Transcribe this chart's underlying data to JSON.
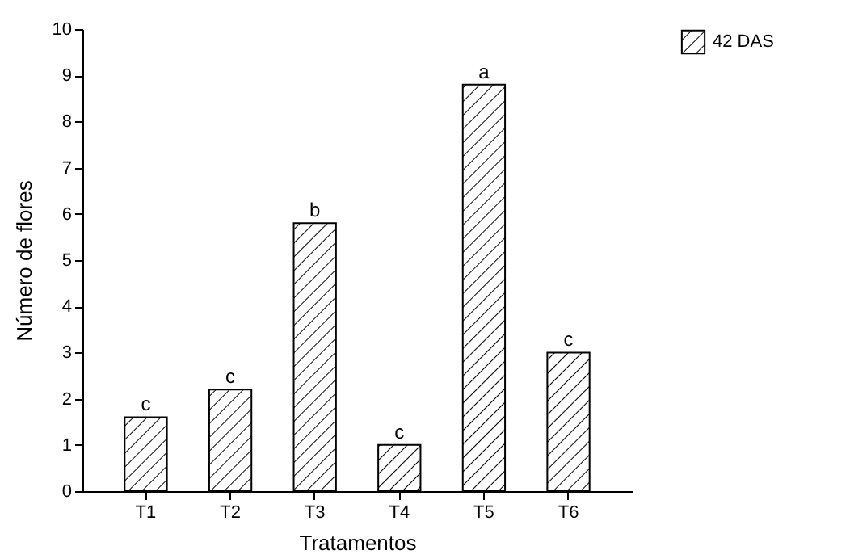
{
  "chart_data": {
    "type": "bar",
    "xlabel": "Tratamentos",
    "ylabel": "Número de flores",
    "categories": [
      "T1",
      "T2",
      "T3",
      "T4",
      "T5",
      "T6"
    ],
    "series": [
      {
        "name": "42 DAS",
        "color": "#000000",
        "values": [
          1.6,
          2.2,
          5.8,
          1.0,
          8.8,
          3.0
        ]
      }
    ],
    "ylim": [
      0,
      10
    ],
    "yticks": [
      0,
      1,
      2,
      3,
      4,
      5,
      6,
      7,
      8,
      9,
      10
    ],
    "grid": false,
    "legend": "right",
    "annotations": [
      {
        "text": "c",
        "x": "T1",
        "y": 1.6
      },
      {
        "text": "c",
        "x": "T2",
        "y": 2.2
      },
      {
        "text": "b",
        "x": "T3",
        "y": 5.8
      },
      {
        "text": "c",
        "x": "T4",
        "y": 1.0
      },
      {
        "text": "a",
        "x": "T5",
        "y": 8.8
      },
      {
        "text": "c",
        "x": "T6",
        "y": 3.0
      }
    ]
  }
}
